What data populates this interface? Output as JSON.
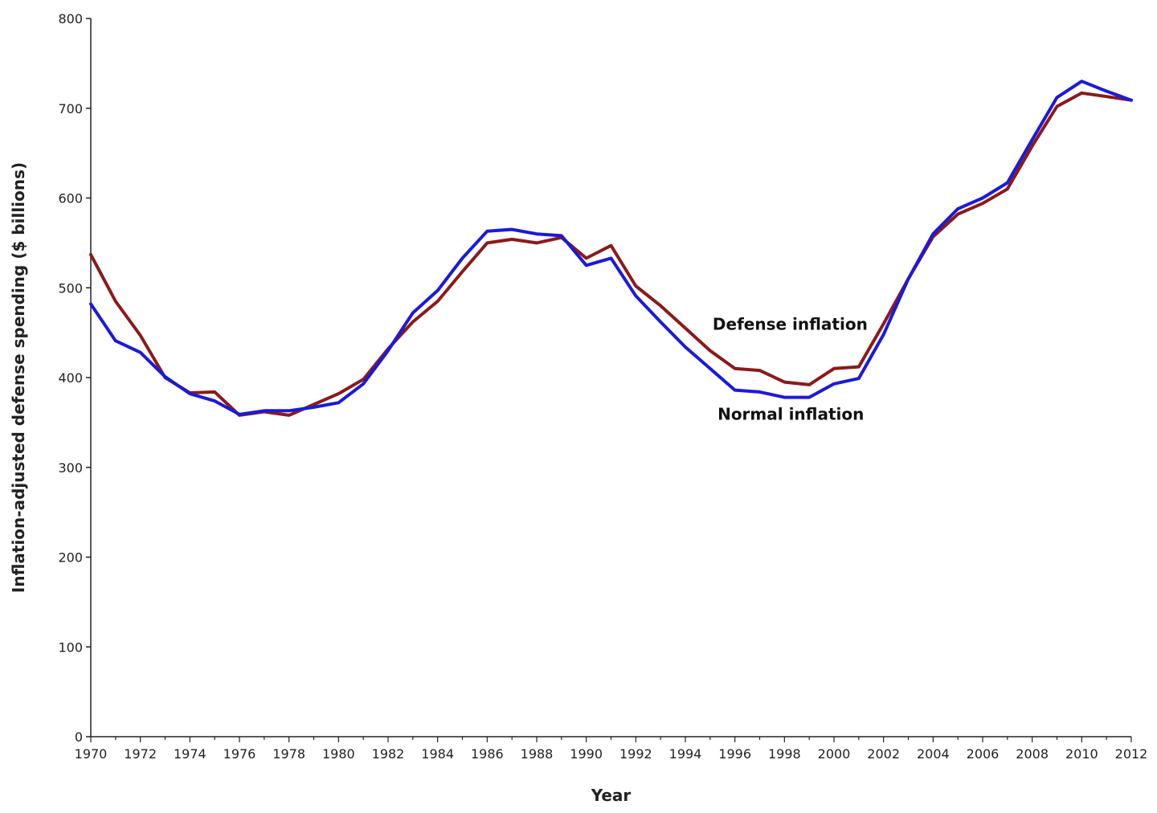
{
  "chart_data": {
    "type": "line",
    "title": "",
    "xlabel": "Year",
    "ylabel": "Inflation-adjusted defense spending ($ billions)",
    "xlim": [
      1970,
      2012
    ],
    "ylim": [
      0,
      800
    ],
    "y_ticks": [
      0,
      100,
      200,
      300,
      400,
      500,
      600,
      700,
      800
    ],
    "x_tick_labels": [
      "1970",
      "1972",
      "1974",
      "1976",
      "1978",
      "1980",
      "1982",
      "1984",
      "1986",
      "1988",
      "1990",
      "1992",
      "1994",
      "1996",
      "1998",
      "2000",
      "2002",
      "2004",
      "2006",
      "2008",
      "2010",
      "2012"
    ],
    "grid": false,
    "legend": "none",
    "x": [
      1970,
      1971,
      1972,
      1973,
      1974,
      1975,
      1976,
      1977,
      1978,
      1979,
      1980,
      1981,
      1982,
      1983,
      1984,
      1985,
      1986,
      1987,
      1988,
      1989,
      1990,
      1991,
      1992,
      1993,
      1994,
      1995,
      1996,
      1997,
      1998,
      1999,
      2000,
      2001,
      2002,
      2003,
      2004,
      2005,
      2006,
      2007,
      2008,
      2009,
      2010,
      2011,
      2012
    ],
    "series": [
      {
        "name": "Defense inflation",
        "color": "#8b1a1a",
        "values": [
          537,
          485,
          447,
          400,
          383,
          384,
          358,
          362,
          358,
          370,
          382,
          398,
          432,
          462,
          485,
          518,
          550,
          554,
          550,
          556,
          533,
          547,
          502,
          480,
          455,
          430,
          410,
          408,
          395,
          392,
          410,
          412,
          460,
          510,
          557,
          582,
          594,
          610,
          658,
          702,
          717,
          713,
          709
        ]
      },
      {
        "name": "Normal inflation",
        "color": "#1a1adb",
        "values": [
          482,
          441,
          428,
          401,
          382,
          374,
          359,
          363,
          363,
          367,
          372,
          393,
          430,
          472,
          497,
          533,
          563,
          565,
          560,
          558,
          525,
          533,
          491,
          462,
          434,
          410,
          386,
          384,
          378,
          378,
          393,
          399,
          448,
          510,
          560,
          588,
          600,
          617,
          665,
          712,
          730,
          719,
          709
        ]
      }
    ],
    "annotations": [
      {
        "text": "Defense inflation",
        "series": "Defense inflation"
      },
      {
        "text": "Normal inflation",
        "series": "Normal inflation"
      }
    ]
  }
}
